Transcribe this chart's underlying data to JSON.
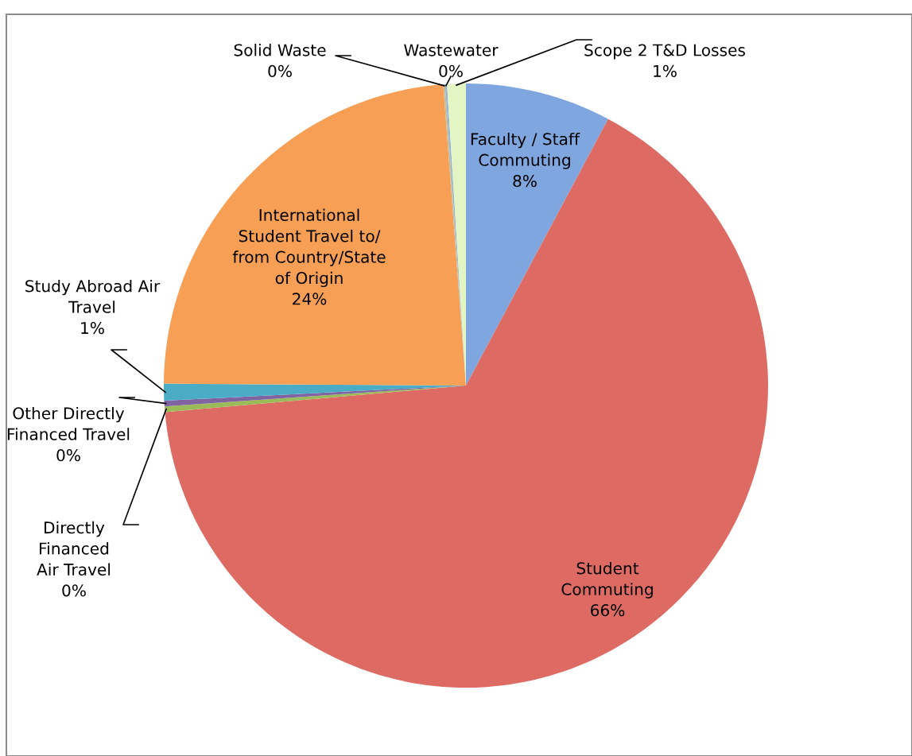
{
  "chart_data": {
    "type": "pie",
    "categories": [
      "Faculty / Staff Commuting",
      "Student Commuting",
      "Directly Financed Air Travel",
      "Other Directly Financed Travel",
      "Study Abroad Air Travel",
      "International Student Travel to/ from Country/State of Origin",
      "Solid Waste",
      "Wastewater",
      "Scope 2 T&D Losses"
    ],
    "values": [
      7.8,
      65.8,
      0.3,
      0.3,
      0.9,
      23.7,
      0.1,
      0.1,
      1.0
    ],
    "value_labels": [
      "8%",
      "66%",
      "0%",
      "0%",
      "1%",
      "24%",
      "0%",
      "0%",
      "1%"
    ],
    "colors": [
      "#7fa6df",
      "#dd6b63",
      "#9bbb59",
      "#8064a2",
      "#4bacc6",
      "#f7a055",
      "#c4bd97",
      "#95b3d7",
      "#e4f5c4"
    ]
  }
}
